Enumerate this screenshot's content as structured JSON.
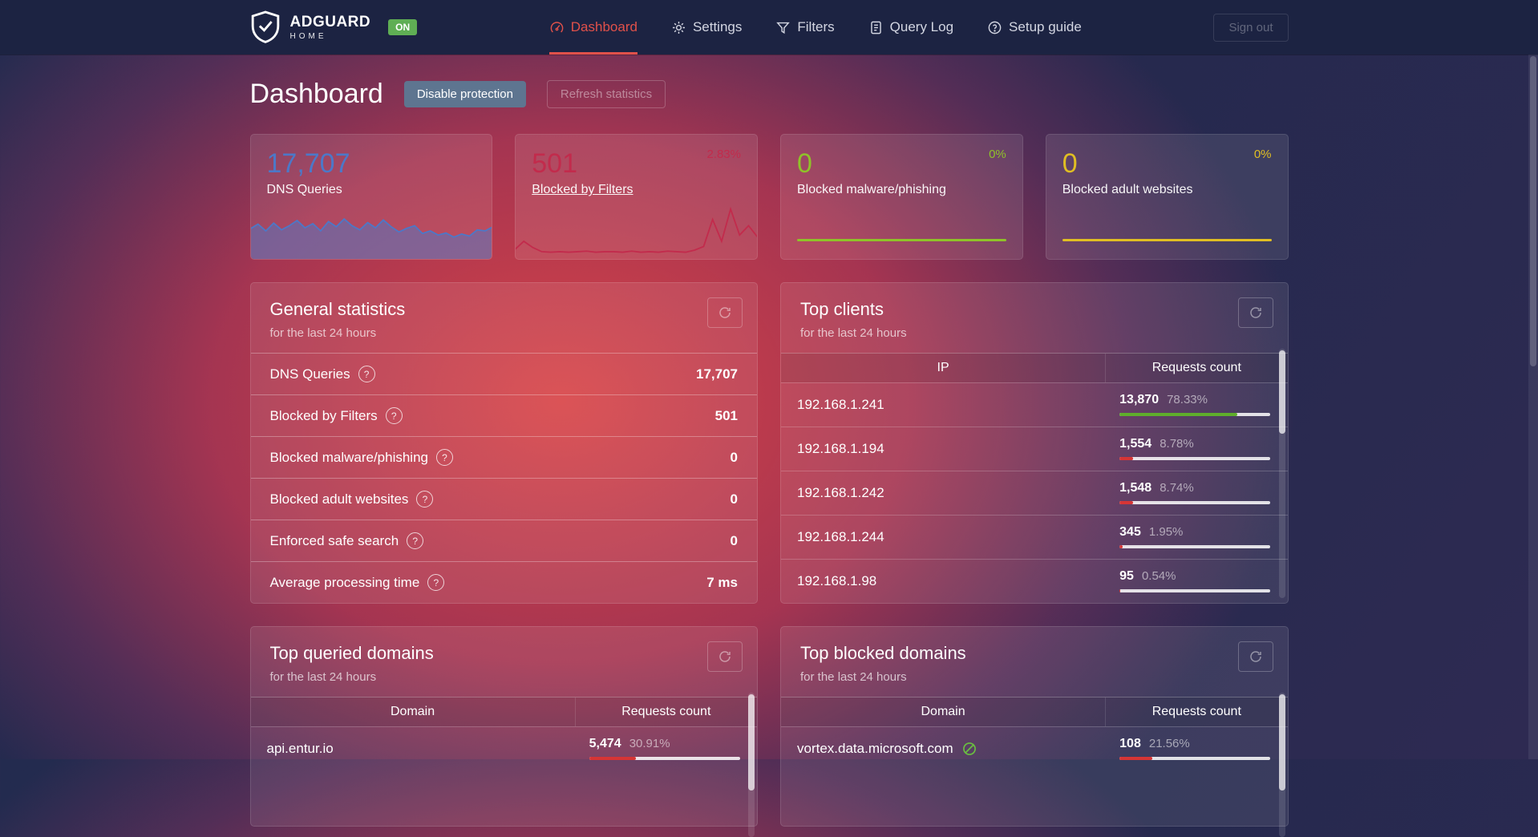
{
  "navbar": {
    "brand": {
      "title": "ADGUARD",
      "subtitle": "HOME",
      "status_badge": "ON",
      "badge_color": "#5fae54"
    },
    "items": [
      {
        "label": "Dashboard"
      },
      {
        "label": "Settings"
      },
      {
        "label": "Filters"
      },
      {
        "label": "Query Log"
      },
      {
        "label": "Setup guide"
      }
    ],
    "active_item": "Dashboard",
    "active_color": "#e1514a",
    "sign_out_label": "Sign out"
  },
  "page": {
    "title": "Dashboard",
    "disable_protection_label": "Disable protection",
    "refresh_statistics_label": "Refresh statistics"
  },
  "stat_cards": [
    {
      "value": "17,707",
      "label": "DNS Queries",
      "percent": "",
      "color": "#4c78c8"
    },
    {
      "value": "501",
      "label": "Blocked by Filters",
      "percent": "2.83%",
      "color": "#c22b4c"
    },
    {
      "value": "0",
      "label": "Blocked malware/phishing",
      "percent": "0%",
      "color": "#8fc229"
    },
    {
      "value": "0",
      "label": "Blocked adult websites",
      "percent": "0%",
      "color": "#e0be23"
    }
  ],
  "general_statistics": {
    "title": "General statistics",
    "subtitle": "for the last 24 hours",
    "rows": [
      {
        "label": "DNS Queries",
        "value": "17,707"
      },
      {
        "label": "Blocked by Filters",
        "value": "501"
      },
      {
        "label": "Blocked malware/phishing",
        "value": "0"
      },
      {
        "label": "Blocked adult websites",
        "value": "0"
      },
      {
        "label": "Enforced safe search",
        "value": "0"
      },
      {
        "label": "Average processing time",
        "value": "7 ms"
      }
    ]
  },
  "top_clients": {
    "title": "Top clients",
    "subtitle": "for the last 24 hours",
    "col_ip": "IP",
    "col_count": "Requests count",
    "rows": [
      {
        "ip": "192.168.1.241",
        "count": "13,870",
        "percent": "78.33%",
        "bar": 78.33,
        "bar_color": "#5fae2c"
      },
      {
        "ip": "192.168.1.194",
        "count": "1,554",
        "percent": "8.78%",
        "bar": 8.78,
        "bar_color": "#d63535"
      },
      {
        "ip": "192.168.1.242",
        "count": "1,548",
        "percent": "8.74%",
        "bar": 8.74,
        "bar_color": "#d63535"
      },
      {
        "ip": "192.168.1.244",
        "count": "345",
        "percent": "1.95%",
        "bar": 1.95,
        "bar_color": "#d63535"
      },
      {
        "ip": "192.168.1.98",
        "count": "95",
        "percent": "0.54%",
        "bar": 0.54,
        "bar_color": "#d63535"
      }
    ]
  },
  "top_queried_domains": {
    "title": "Top queried domains",
    "subtitle": "for the last 24 hours",
    "col_domain": "Domain",
    "col_count": "Requests count",
    "rows": [
      {
        "domain": "api.entur.io",
        "count": "5,474",
        "percent": "30.91%",
        "bar": 30.91,
        "bar_color": "#d63535"
      }
    ]
  },
  "top_blocked_domains": {
    "title": "Top blocked domains",
    "subtitle": "for the last 24 hours",
    "col_domain": "Domain",
    "col_count": "Requests count",
    "rows": [
      {
        "domain": "vortex.data.microsoft.com",
        "count": "108",
        "percent": "21.56%",
        "bar": 21.56,
        "bar_color": "#d63535",
        "icon_color": "#6abf40"
      }
    ]
  },
  "chart_data": [
    {
      "type": "area",
      "name": "dns-queries-sparkline",
      "color": "#4c78c8",
      "fill": true,
      "values": [
        54,
        63,
        50,
        65,
        52,
        60,
        70,
        56,
        64,
        50,
        68,
        58,
        73,
        60,
        52,
        66,
        56,
        71,
        58,
        48,
        55,
        60,
        45,
        50,
        42,
        46,
        38,
        44,
        40,
        52,
        50,
        58
      ]
    },
    {
      "type": "line",
      "name": "blocked-filters-sparkline",
      "color": "#c22b4c",
      "fill": false,
      "values": [
        14,
        30,
        18,
        10,
        9,
        10,
        9,
        10,
        11,
        9,
        10,
        10,
        9,
        11,
        9,
        10,
        9,
        11,
        10,
        9,
        13,
        20,
        72,
        30,
        92,
        42,
        60,
        38
      ]
    },
    {
      "type": "line",
      "name": "blocked-malware-sparkline",
      "color": "#8fc229",
      "fill": false,
      "values": [
        0,
        0
      ]
    },
    {
      "type": "line",
      "name": "blocked-adult-sparkline",
      "color": "#e0be23",
      "fill": false,
      "values": [
        0,
        0
      ]
    }
  ]
}
